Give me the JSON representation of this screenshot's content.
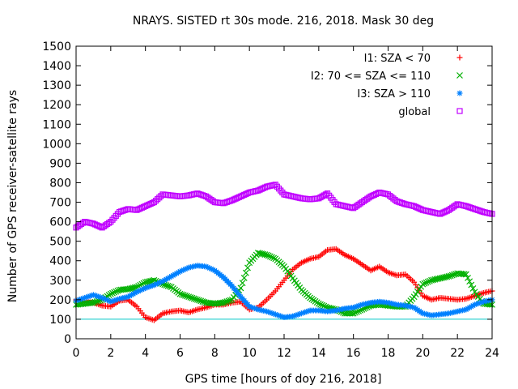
{
  "chart_data": {
    "type": "scatter",
    "title": "NRAYS. SISTED rt 30s mode. 216, 2018. Mask 30 deg",
    "xlabel": "GPS time [hours of doy 216, 2018]",
    "ylabel": "Number of GPS receiver-satellite rays",
    "xlim": [
      0,
      24
    ],
    "ylim": [
      0,
      1500
    ],
    "xticks": [
      "0",
      "2",
      "4",
      "6",
      "8",
      "10",
      "12",
      "14",
      "16",
      "18",
      "20",
      "22",
      "24"
    ],
    "yticks": [
      "0",
      "100",
      "200",
      "300",
      "400",
      "500",
      "600",
      "700",
      "800",
      "900",
      "1000",
      "1100",
      "1200",
      "1300",
      "1400",
      "1500"
    ],
    "reference_line": {
      "y": 100,
      "color": "#00c8c8"
    },
    "series": [
      {
        "name": "I1: SZA < 70",
        "color": "#ff0000",
        "marker": "plus",
        "x": [
          0,
          0.5,
          1,
          1.5,
          2,
          2.5,
          3,
          3.5,
          4,
          4.5,
          5,
          5.5,
          6,
          6.5,
          7,
          7.5,
          8,
          8.5,
          9,
          9.5,
          10,
          10.5,
          11,
          11.5,
          12,
          12.5,
          13,
          13.5,
          14,
          14.5,
          15,
          15.5,
          16,
          16.5,
          17,
          17.5,
          18,
          18.5,
          19,
          19.5,
          20,
          20.5,
          21,
          21.5,
          22,
          22.5,
          23,
          23.5,
          24
        ],
        "values": [
          200,
          190,
          185,
          170,
          165,
          195,
          200,
          165,
          110,
          95,
          130,
          140,
          145,
          135,
          150,
          160,
          175,
          175,
          185,
          190,
          150,
          160,
          200,
          245,
          300,
          355,
          390,
          410,
          420,
          455,
          460,
          430,
          410,
          380,
          350,
          370,
          340,
          325,
          330,
          290,
          220,
          200,
          210,
          205,
          200,
          205,
          220,
          235,
          245
        ]
      },
      {
        "name": "I2: 70 <= SZA <= 110",
        "color": "#00b000",
        "marker": "x",
        "x": [
          0,
          0.5,
          1,
          1.5,
          2,
          2.5,
          3,
          3.5,
          4,
          4.5,
          5,
          5.5,
          6,
          6.5,
          7,
          7.5,
          8,
          8.5,
          9,
          9.5,
          10,
          10.5,
          11,
          11.5,
          12,
          12.5,
          13,
          13.5,
          14,
          14.5,
          15,
          15.5,
          16,
          16.5,
          17,
          17.5,
          18,
          18.5,
          19,
          19.5,
          20,
          20.5,
          21,
          21.5,
          22,
          22.5,
          23,
          23.5,
          24
        ],
        "values": [
          175,
          180,
          185,
          200,
          230,
          250,
          255,
          265,
          290,
          300,
          280,
          265,
          230,
          215,
          200,
          185,
          180,
          185,
          200,
          260,
          390,
          440,
          430,
          410,
          370,
          310,
          250,
          210,
          180,
          160,
          150,
          130,
          130,
          150,
          170,
          175,
          170,
          165,
          165,
          215,
          280,
          300,
          310,
          320,
          335,
          330,
          240,
          180,
          175
        ]
      },
      {
        "name": "I3: SZA > 110",
        "color": "#0080ff",
        "marker": "star",
        "x": [
          0,
          0.5,
          1,
          1.5,
          2,
          2.5,
          3,
          3.5,
          4,
          4.5,
          5,
          5.5,
          6,
          6.5,
          7,
          7.5,
          8,
          8.5,
          9,
          9.5,
          10,
          10.5,
          11,
          11.5,
          12,
          12.5,
          13,
          13.5,
          14,
          14.5,
          15,
          15.5,
          16,
          16.5,
          17,
          17.5,
          18,
          18.5,
          19,
          19.5,
          20,
          20.5,
          21,
          21.5,
          22,
          22.5,
          23,
          23.5,
          24
        ],
        "values": [
          195,
          210,
          225,
          210,
          190,
          205,
          215,
          240,
          260,
          275,
          295,
          320,
          345,
          365,
          375,
          370,
          350,
          315,
          270,
          215,
          165,
          150,
          140,
          125,
          110,
          115,
          130,
          145,
          145,
          140,
          145,
          155,
          160,
          175,
          185,
          190,
          185,
          175,
          170,
          160,
          130,
          120,
          125,
          130,
          140,
          150,
          175,
          190,
          200
        ]
      },
      {
        "name": "global",
        "color": "#c000ff",
        "marker": "square",
        "x": [
          0,
          0.5,
          1,
          1.5,
          2,
          2.5,
          3,
          3.5,
          4,
          4.5,
          5,
          5.5,
          6,
          6.5,
          7,
          7.5,
          8,
          8.5,
          9,
          9.5,
          10,
          10.5,
          11,
          11.5,
          12,
          12.5,
          13,
          13.5,
          14,
          14.5,
          15,
          15.5,
          16,
          16.5,
          17,
          17.5,
          18,
          18.5,
          19,
          19.5,
          20,
          20.5,
          21,
          21.5,
          22,
          22.5,
          23,
          23.5,
          24
        ],
        "values": [
          570,
          600,
          590,
          570,
          600,
          650,
          665,
          660,
          680,
          700,
          740,
          735,
          730,
          735,
          745,
          730,
          700,
          695,
          710,
          730,
          750,
          760,
          780,
          790,
          740,
          730,
          720,
          715,
          720,
          745,
          690,
          680,
          670,
          700,
          730,
          750,
          740,
          705,
          690,
          680,
          660,
          650,
          640,
          660,
          690,
          680,
          665,
          650,
          640
        ]
      }
    ],
    "legend": {
      "position": "top-right",
      "entries": [
        "I1: SZA < 70",
        "I2: 70 <= SZA <= 110",
        "I3: SZA > 110",
        "global"
      ]
    }
  }
}
